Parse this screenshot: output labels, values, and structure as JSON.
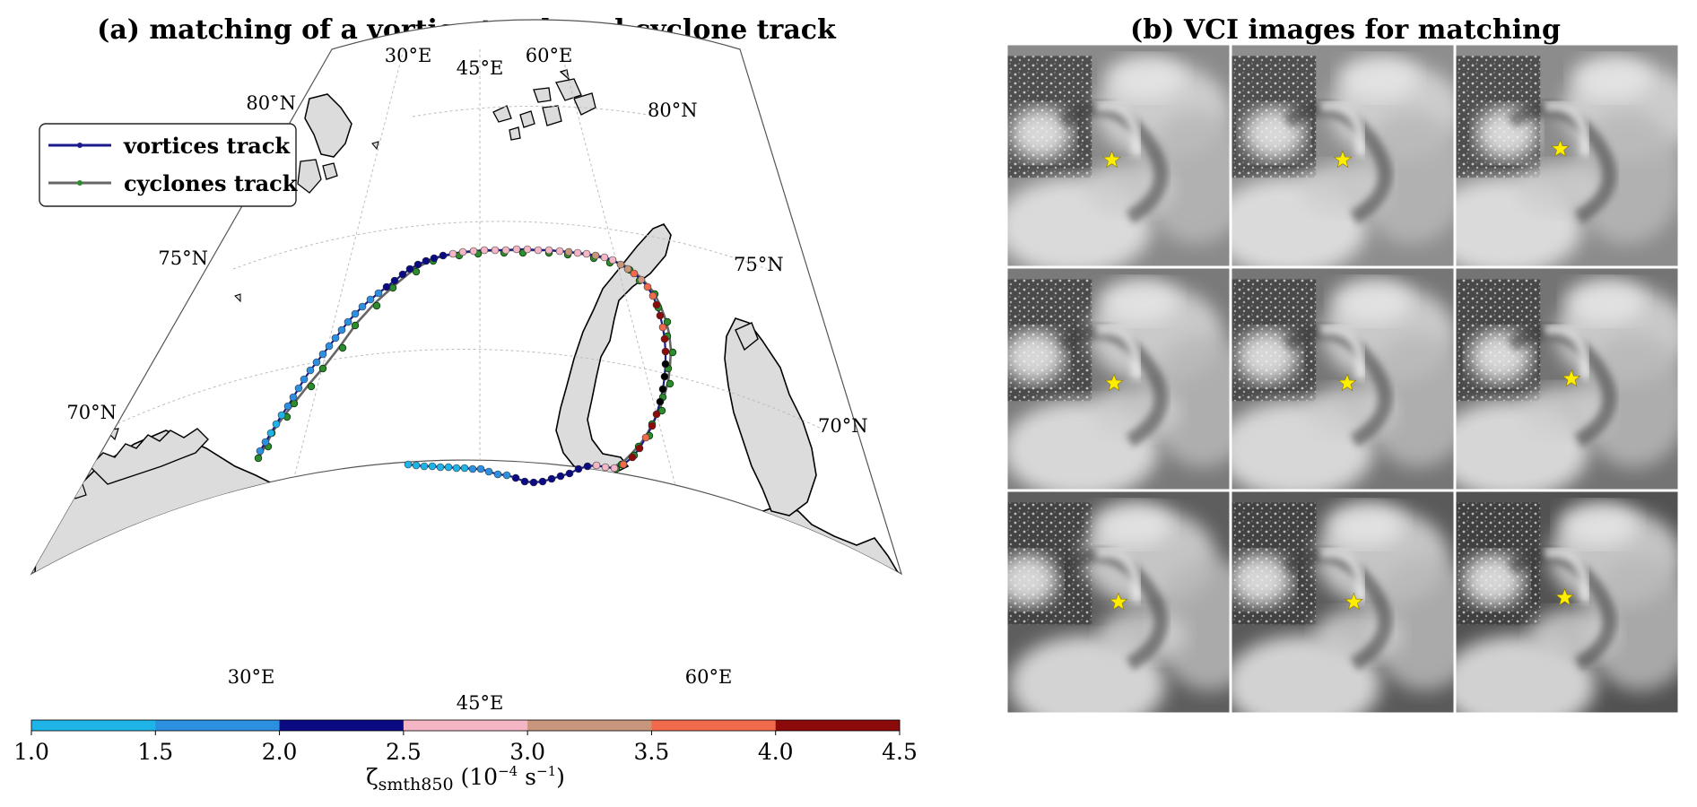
{
  "panel_a": {
    "title": "(a) matching of a vortice track and cyclone track",
    "lon_labels_top": [
      "30°E",
      "45°E",
      "60°E"
    ],
    "lon_labels_bottom": [
      "30°E",
      "45°E",
      "60°E"
    ],
    "lat_labels_left": [
      "80°N",
      "75°N",
      "70°N"
    ],
    "lat_labels_right": [
      "80°N",
      "75°N",
      "70°N"
    ],
    "legend": {
      "vortices": "vortices track",
      "cyclones": "cyclones track"
    },
    "colors": {
      "land": "#dcdcdc",
      "vortices_track": "#1a1a8c",
      "cyclones_track": "#666666",
      "cyclone_dots": "#2e8b2e"
    }
  },
  "colorbar": {
    "ticks": [
      "1.0",
      "1.5",
      "2.0",
      "2.5",
      "3.0",
      "3.5",
      "4.0",
      "4.5"
    ],
    "colors": [
      "#1fb4e8",
      "#2d8fe0",
      "#0a0a82",
      "#f4b6c4",
      "#c8967c",
      "#f26a4c",
      "#8c0a0a"
    ],
    "label_main": "ζ",
    "label_sub": "smth850",
    "label_units": "(10",
    "label_exp1": "−4",
    "label_units2": " s",
    "label_exp2": "−1",
    "label_close": ")"
  },
  "panel_b": {
    "title": "(b) VCI images for matching",
    "star_color": "#ffee00"
  }
}
